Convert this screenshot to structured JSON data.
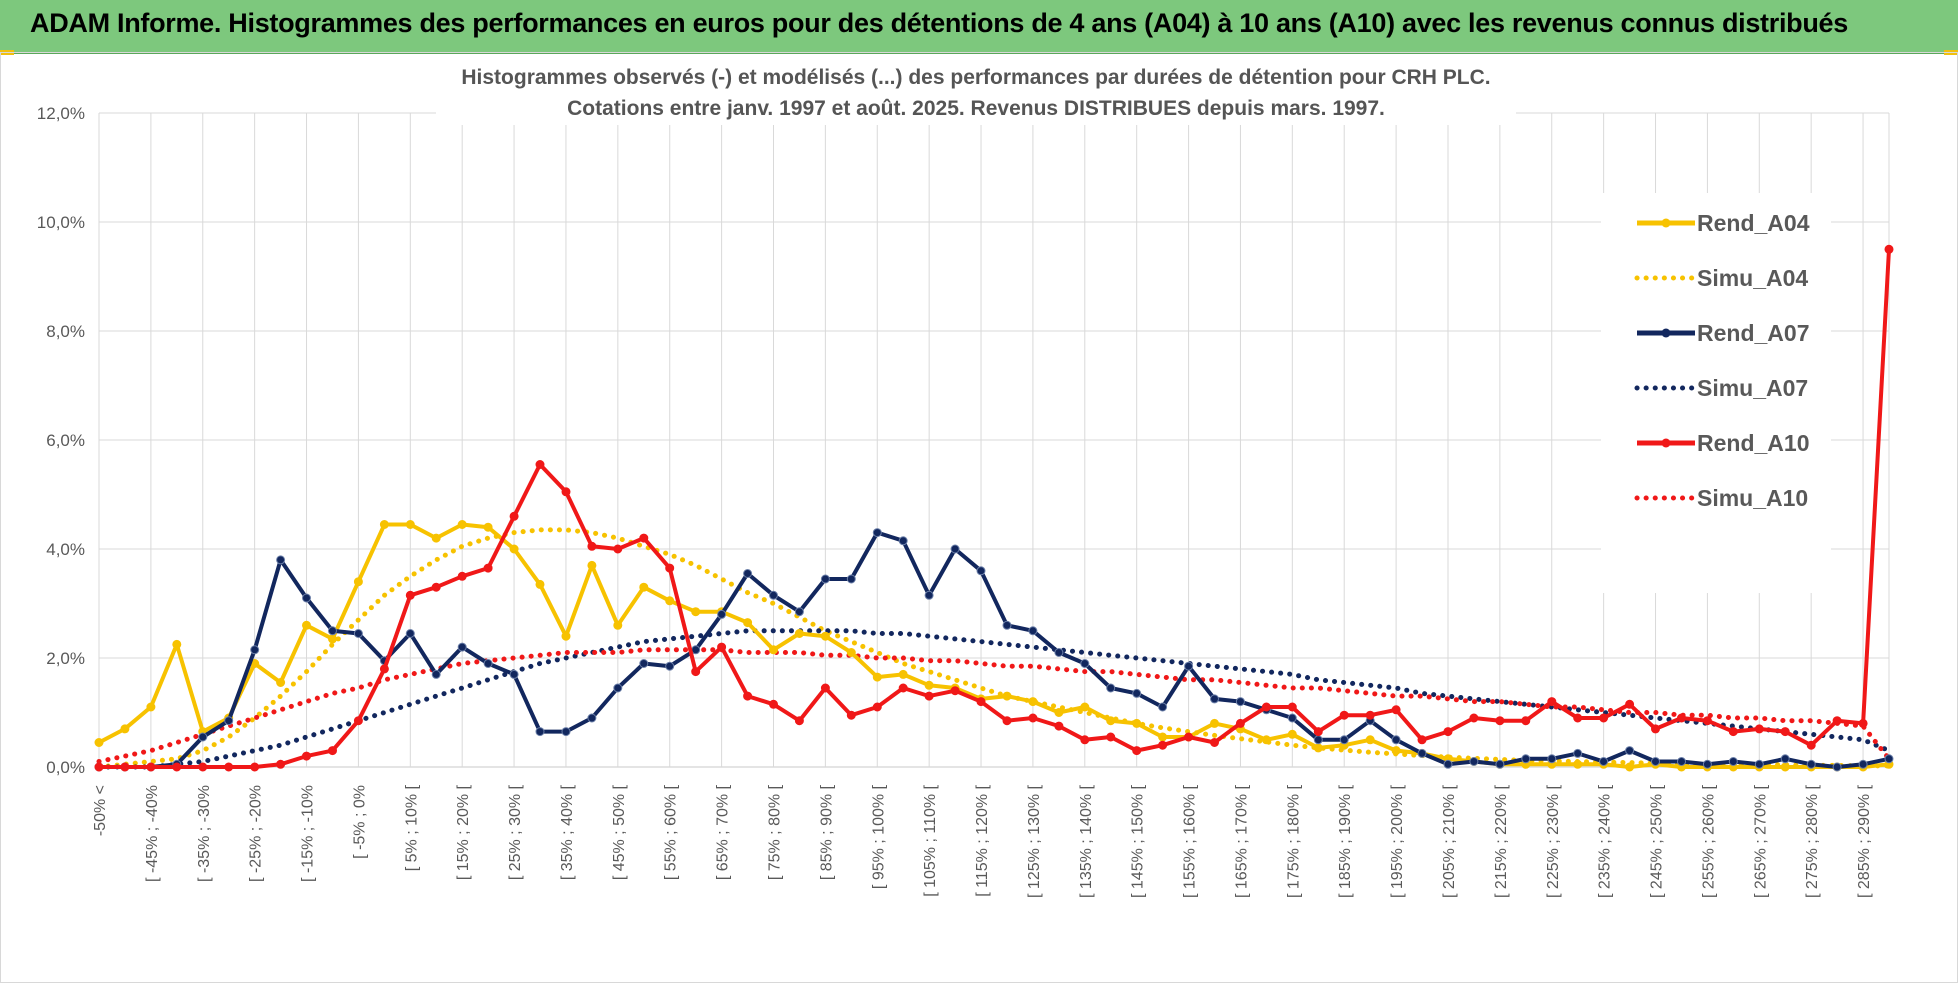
{
  "banner": {
    "title": "ADAM Informe. Histogrammes des performances en euros pour des détentions de 4 ans (A04) à 10 ans (A10) avec les revenus connus distribués",
    "color": "#7dc87d"
  },
  "chart_data": {
    "type": "line",
    "title": "Histogrammes observés (-) et modélisés (...) des performances par durées de détention pour CRH PLC.",
    "subtitle": "Cotations entre janv. 1997 et août. 2025. Revenus DISTRIBUES depuis mars. 1997.",
    "y_ticks": [
      "0,0%",
      "2,0%",
      "4,0%",
      "6,0%",
      "8,0%",
      "10,0%",
      "12,0%"
    ],
    "ylim": [
      0,
      12
    ],
    "grid": true,
    "legend_position": "right",
    "x_labels": [
      "-50% <",
      "[ -45% ; -40%",
      "[ -35% ; -30%",
      "[ -25% ; -20%",
      "[ -15% ; -10%",
      "[ -5% ; 0%",
      "[ 5% ; 10% [",
      "[ 15% ; 20% [",
      "[ 25% ; 30% [",
      "[ 35% ; 40% [",
      "[ 45% ; 50% [",
      "[ 55% ; 60% [",
      "[ 65% ; 70% [",
      "[ 75% ; 80% [",
      "[ 85% ; 90% [",
      "[ 95% ; 100% [",
      "[ 105% ; 110% [",
      "[ 115% ; 120% [",
      "[ 125% ; 130% [",
      "[ 135% ; 140% [",
      "[ 145% ; 150% [",
      "[ 155% ; 160% [",
      "[ 165% ; 170% [",
      "[ 175% ; 180% [",
      "[ 185% ; 190% [",
      "[ 195% ; 200% [",
      "[ 205% ; 210% [",
      "[ 215% ; 220% [",
      "[ 225% ; 230% [",
      "[ 235% ; 240% [",
      "[ 245% ; 250% [",
      "[ 255% ; 260% [",
      "[ 265% ; 270% [",
      "[ 275% ; 280% [",
      "[ 285% ; 290% ["
    ],
    "series": [
      {
        "name": "Rend_A04",
        "style": "solid",
        "color": "#f7c200",
        "values": [
          0.45,
          0.7,
          1.1,
          2.25,
          0.65,
          0.9,
          1.9,
          1.55,
          2.6,
          2.35,
          3.4,
          4.45,
          4.45,
          4.2,
          4.45,
          4.4,
          4.0,
          3.35,
          2.4,
          3.7,
          2.6,
          3.3,
          3.05,
          2.85,
          2.85,
          2.65,
          2.15,
          2.45,
          2.4,
          2.1,
          1.65,
          1.7,
          1.5,
          1.45,
          1.25,
          1.3,
          1.2,
          1.0,
          1.1,
          0.85,
          0.8,
          0.55,
          0.55,
          0.8,
          0.7,
          0.5,
          0.6,
          0.35,
          0.4,
          0.5,
          0.3,
          0.25,
          0.15,
          0.1,
          0.05,
          0.05,
          0.05,
          0.05,
          0.05,
          0.0,
          0.05,
          0.0,
          0.0,
          0.0,
          0.0,
          0.0,
          0.0,
          0.0,
          0.0,
          0.05
        ]
      },
      {
        "name": "Simu_A04",
        "style": "dotted",
        "color": "#f7c200",
        "values": [
          0.0,
          0.05,
          0.1,
          0.15,
          0.3,
          0.55,
          0.9,
          1.3,
          1.75,
          2.25,
          2.7,
          3.15,
          3.5,
          3.8,
          4.05,
          4.2,
          4.3,
          4.35,
          4.35,
          4.3,
          4.2,
          4.05,
          3.9,
          3.7,
          3.45,
          3.2,
          3.0,
          2.75,
          2.5,
          2.3,
          2.1,
          1.9,
          1.75,
          1.6,
          1.45,
          1.3,
          1.2,
          1.1,
          1.0,
          0.9,
          0.8,
          0.72,
          0.65,
          0.58,
          0.52,
          0.46,
          0.4,
          0.35,
          0.31,
          0.27,
          0.24,
          0.21,
          0.18,
          0.16,
          0.14,
          0.12,
          0.11,
          0.1,
          0.09,
          0.08,
          0.07,
          0.06,
          0.05,
          0.05,
          0.04,
          0.04,
          0.03,
          0.03,
          0.02,
          0.02
        ]
      },
      {
        "name": "Rend_A07",
        "style": "solid",
        "color": "#12275e",
        "values": [
          0.0,
          0.0,
          0.0,
          0.05,
          0.55,
          0.85,
          2.15,
          3.8,
          3.1,
          2.5,
          2.45,
          1.95,
          2.45,
          1.7,
          2.2,
          1.9,
          1.7,
          0.65,
          0.65,
          0.9,
          1.45,
          1.9,
          1.85,
          2.15,
          2.8,
          3.55,
          3.15,
          2.85,
          3.45,
          3.45,
          4.3,
          4.15,
          3.15,
          4.0,
          3.6,
          2.6,
          2.5,
          2.1,
          1.9,
          1.45,
          1.35,
          1.1,
          1.85,
          1.25,
          1.2,
          1.05,
          0.9,
          0.5,
          0.5,
          0.85,
          0.5,
          0.25,
          0.05,
          0.1,
          0.05,
          0.15,
          0.15,
          0.25,
          0.1,
          0.3,
          0.1,
          0.1,
          0.05,
          0.1,
          0.05,
          0.15,
          0.05,
          0.0,
          0.05,
          0.15
        ]
      },
      {
        "name": "Simu_A07",
        "style": "dotted",
        "color": "#12275e",
        "values": [
          0.0,
          0.0,
          0.0,
          0.05,
          0.1,
          0.2,
          0.3,
          0.4,
          0.55,
          0.7,
          0.85,
          1.0,
          1.15,
          1.3,
          1.45,
          1.6,
          1.75,
          1.9,
          2.0,
          2.1,
          2.2,
          2.3,
          2.35,
          2.4,
          2.45,
          2.5,
          2.5,
          2.5,
          2.5,
          2.5,
          2.45,
          2.45,
          2.4,
          2.35,
          2.3,
          2.25,
          2.2,
          2.15,
          2.1,
          2.05,
          2.0,
          1.95,
          1.9,
          1.85,
          1.8,
          1.75,
          1.7,
          1.6,
          1.55,
          1.5,
          1.45,
          1.35,
          1.3,
          1.25,
          1.2,
          1.15,
          1.1,
          1.05,
          1.0,
          0.95,
          0.9,
          0.85,
          0.8,
          0.75,
          0.7,
          0.65,
          0.6,
          0.55,
          0.5,
          0.3
        ]
      },
      {
        "name": "Rend_A10",
        "style": "solid",
        "color": "#f01818",
        "values": [
          0.0,
          0.0,
          0.0,
          0.0,
          0.0,
          0.0,
          0.0,
          0.05,
          0.2,
          0.3,
          0.85,
          1.8,
          3.15,
          3.3,
          3.5,
          3.65,
          4.6,
          5.55,
          5.05,
          4.05,
          4.0,
          4.2,
          3.65,
          1.75,
          2.2,
          1.3,
          1.15,
          0.85,
          1.45,
          0.95,
          1.1,
          1.45,
          1.3,
          1.4,
          1.2,
          0.85,
          0.9,
          0.75,
          0.5,
          0.55,
          0.3,
          0.4,
          0.55,
          0.45,
          0.8,
          1.1,
          1.1,
          0.65,
          0.95,
          0.95,
          1.05,
          0.5,
          0.65,
          0.9,
          0.85,
          0.85,
          1.2,
          0.9,
          0.9,
          1.15,
          0.7,
          0.9,
          0.85,
          0.65,
          0.7,
          0.65,
          0.4,
          0.85,
          0.8,
          9.5
        ]
      },
      {
        "name": "Simu_A10",
        "style": "dotted",
        "color": "#f01818",
        "values": [
          0.1,
          0.2,
          0.3,
          0.45,
          0.6,
          0.75,
          0.9,
          1.05,
          1.2,
          1.35,
          1.45,
          1.6,
          1.7,
          1.8,
          1.9,
          1.95,
          2.0,
          2.05,
          2.1,
          2.1,
          2.1,
          2.15,
          2.15,
          2.15,
          2.15,
          2.1,
          2.1,
          2.1,
          2.05,
          2.05,
          2.0,
          2.0,
          1.95,
          1.95,
          1.9,
          1.85,
          1.85,
          1.8,
          1.75,
          1.75,
          1.7,
          1.65,
          1.6,
          1.6,
          1.55,
          1.5,
          1.45,
          1.45,
          1.4,
          1.35,
          1.3,
          1.3,
          1.25,
          1.2,
          1.2,
          1.15,
          1.1,
          1.1,
          1.05,
          1.0,
          1.0,
          0.95,
          0.95,
          0.9,
          0.9,
          0.85,
          0.85,
          0.8,
          0.75,
          0.15
        ]
      }
    ]
  }
}
